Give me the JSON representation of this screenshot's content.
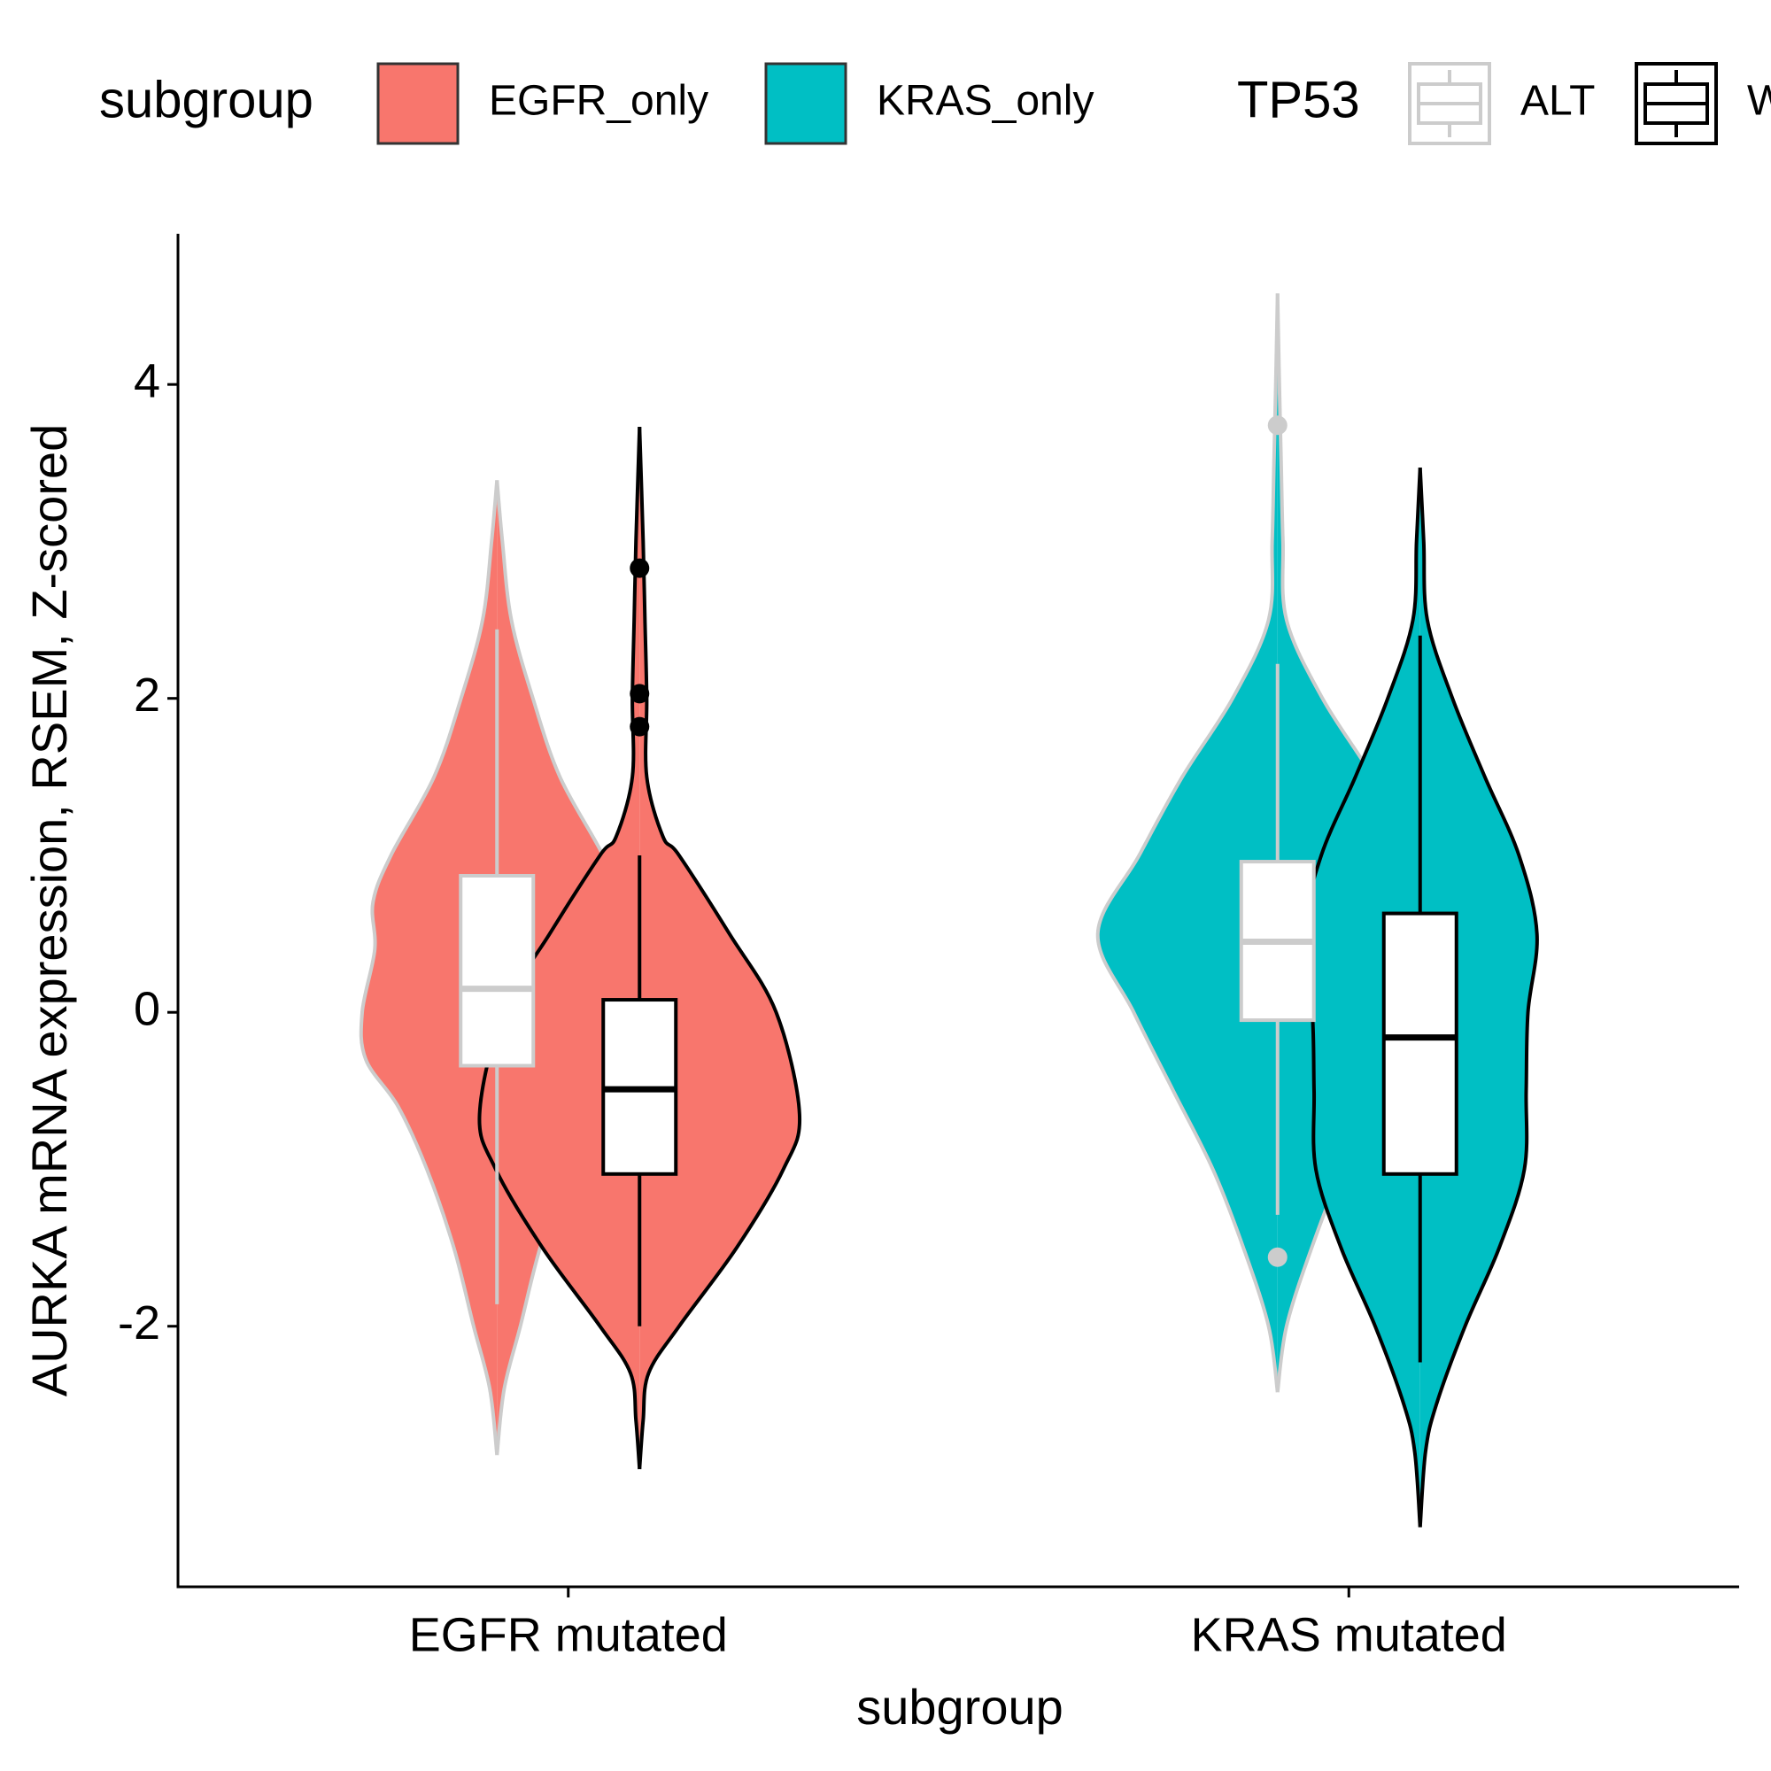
{
  "chart_data": {
    "type": "violin",
    "x_label": "subgroup",
    "y_label": "AURKA mRNA expression, RSEM, Z-scored",
    "categories": [
      "EGFR mutated",
      "KRAS mutated"
    ],
    "category_colors": [
      "#F8766D",
      "#00BFC4"
    ],
    "fill_legend": {
      "title": "subgroup",
      "items": [
        {
          "name": "EGFR_only",
          "color": "#F8766D"
        },
        {
          "name": "KRAS_only",
          "color": "#00BFC4"
        }
      ]
    },
    "legend_title": "TP53",
    "series": [
      {
        "name": "ALT",
        "color": "#cccccc",
        "values": [
          {
            "whisker_low": -1.86,
            "q1": -0.34,
            "median": 0.15,
            "q3": 0.87,
            "whisker_high": 2.44,
            "outliers": [],
            "violin_y": [
              3.39,
              3.0,
              2.5,
              2.0,
              1.5,
              1.0,
              0.7,
              0.4,
              0.0,
              -0.3,
              -0.6,
              -1.0,
              -1.5,
              -2.0,
              -2.4,
              -2.82
            ],
            "violin_density": [
              0,
              0.03,
              0.08,
              0.2,
              0.35,
              0.59,
              0.69,
              0.68,
              0.75,
              0.73,
              0.55,
              0.39,
              0.24,
              0.13,
              0.04,
              0
            ]
          },
          {
            "whisker_low": -1.29,
            "q1": -0.05,
            "median": 0.45,
            "q3": 0.96,
            "whisker_high": 2.22,
            "outliers": [
              3.74,
              -1.56
            ],
            "violin_y": [
              4.58,
              4.0,
              3.5,
              3.0,
              2.5,
              2.0,
              1.5,
              1.0,
              0.5,
              0.0,
              -0.5,
              -1.0,
              -1.5,
              -2.0,
              -2.42
            ],
            "violin_density": [
              0,
              0.01,
              0.02,
              0.03,
              0.05,
              0.25,
              0.53,
              0.77,
              1.0,
              0.8,
              0.58,
              0.36,
              0.19,
              0.05,
              0
            ]
          }
        ]
      },
      {
        "name": "WT",
        "color": "#000000",
        "values": [
          {
            "whisker_low": -2.0,
            "q1": -1.03,
            "median": -0.49,
            "q3": 0.08,
            "whisker_high": 1.0,
            "outliers": [
              2.83,
              2.03,
              1.82
            ],
            "violin_y": [
              3.73,
              3.0,
              2.5,
              2.0,
              1.5,
              1.12,
              1.0,
              0.5,
              0.0,
              -0.65,
              -1.0,
              -1.5,
              -2.0,
              -2.3,
              -2.6,
              -2.91
            ],
            "violin_density": [
              0,
              0.02,
              0.03,
              0.04,
              0.04,
              0.13,
              0.22,
              0.5,
              0.76,
              0.89,
              0.8,
              0.54,
              0.22,
              0.05,
              0.02,
              0
            ]
          },
          {
            "whisker_low": -2.23,
            "q1": -1.03,
            "median": -0.16,
            "q3": 0.63,
            "whisker_high": 2.4,
            "outliers": [],
            "violin_y": [
              3.47,
              3.0,
              2.5,
              2.0,
              1.5,
              1.0,
              0.5,
              0.0,
              -0.5,
              -1.0,
              -1.5,
              -2.0,
              -2.5,
              -2.8,
              -3.28
            ],
            "violin_density": [
              0,
              0.02,
              0.04,
              0.18,
              0.36,
              0.55,
              0.65,
              0.6,
              0.59,
              0.58,
              0.44,
              0.25,
              0.09,
              0.03,
              0
            ]
          }
        ]
      }
    ],
    "ylim": [
      -3.66,
      4.96
    ],
    "yticks": [
      -2,
      0,
      2,
      4
    ]
  }
}
